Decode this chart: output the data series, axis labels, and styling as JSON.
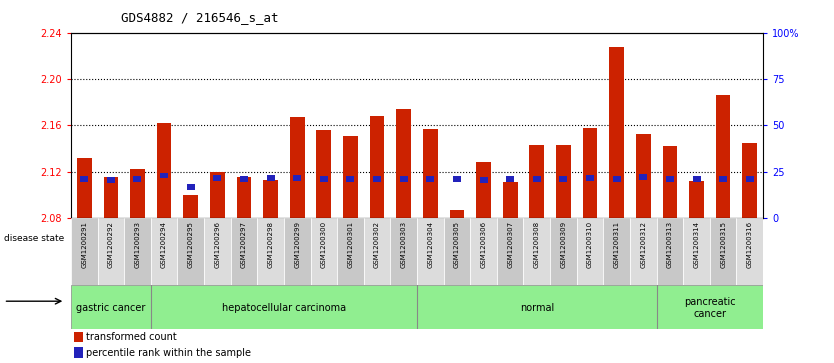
{
  "title": "GDS4882 / 216546_s_at",
  "samples": [
    "GSM1200291",
    "GSM1200292",
    "GSM1200293",
    "GSM1200294",
    "GSM1200295",
    "GSM1200296",
    "GSM1200297",
    "GSM1200298",
    "GSM1200299",
    "GSM1200300",
    "GSM1200301",
    "GSM1200302",
    "GSM1200303",
    "GSM1200304",
    "GSM1200305",
    "GSM1200306",
    "GSM1200307",
    "GSM1200308",
    "GSM1200309",
    "GSM1200310",
    "GSM1200311",
    "GSM1200312",
    "GSM1200313",
    "GSM1200314",
    "GSM1200315",
    "GSM1200316"
  ],
  "transformed_count": [
    2.132,
    2.115,
    2.122,
    2.162,
    2.1,
    2.12,
    2.115,
    2.113,
    2.167,
    2.156,
    2.151,
    2.168,
    2.174,
    2.157,
    2.087,
    2.128,
    2.111,
    2.143,
    2.143,
    2.158,
    2.228,
    2.152,
    2.142,
    2.112,
    2.186,
    2.145
  ],
  "percentile_rank_y": [
    2.111,
    2.11,
    2.111,
    2.114,
    2.104,
    2.112,
    2.111,
    2.112,
    2.112,
    2.111,
    2.111,
    2.111,
    2.111,
    2.111,
    2.111,
    2.11,
    2.111,
    2.111,
    2.111,
    2.112,
    2.111,
    2.113,
    2.111,
    2.111,
    2.111,
    2.111
  ],
  "disease_groups": [
    {
      "label": "gastric cancer",
      "start": 0,
      "end": 3
    },
    {
      "label": "hepatocellular carcinoma",
      "start": 3,
      "end": 13
    },
    {
      "label": "normal",
      "start": 13,
      "end": 22
    },
    {
      "label": "pancreatic\ncancer",
      "start": 22,
      "end": 26
    }
  ],
  "ymin": 2.08,
  "ymax": 2.24,
  "yticks_left": [
    2.08,
    2.12,
    2.16,
    2.2,
    2.24
  ],
  "yticks_right_vals": [
    2.08,
    2.12,
    2.16,
    2.2,
    2.24
  ],
  "yticks_right_labels": [
    "0",
    "25",
    "50",
    "75",
    "100%"
  ],
  "grid_lines": [
    2.12,
    2.16,
    2.2
  ],
  "bar_color": "#CC2200",
  "blue_color": "#2222BB",
  "sample_bg_odd": "#C8C8C8",
  "sample_bg_even": "#DCDCDC",
  "green_light": "#90EE90",
  "green_dark": "#44BB44"
}
